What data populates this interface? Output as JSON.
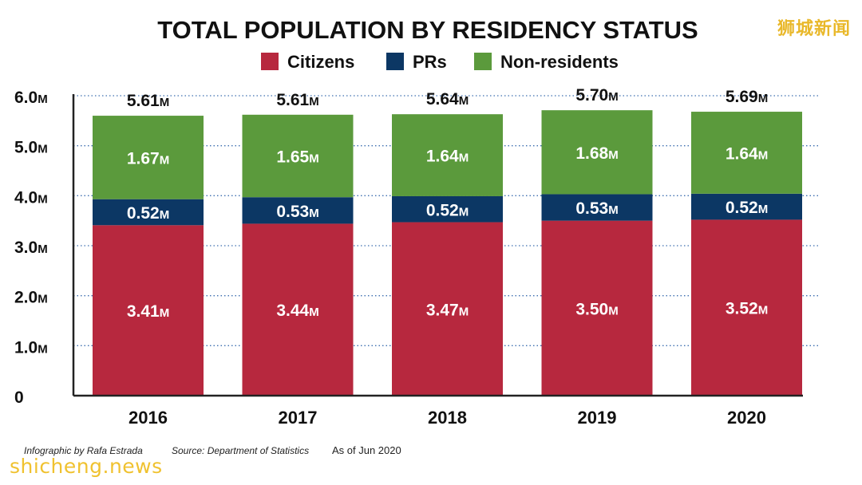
{
  "header": {
    "title": "TOTAL POPULATION BY RESIDENCY STATUS",
    "watermark_top": "狮城新闻"
  },
  "legend": [
    {
      "label": "Citizens",
      "color": "#b7283e"
    },
    {
      "label": "PRs",
      "color": "#0c3764"
    },
    {
      "label": "Non-residents",
      "color": "#5b9a3c"
    }
  ],
  "chart_data": {
    "type": "bar",
    "stacked": true,
    "title": "TOTAL POPULATION BY RESIDENCY STATUS",
    "categories": [
      "2016",
      "2017",
      "2018",
      "2019",
      "2020"
    ],
    "series": [
      {
        "name": "Citizens",
        "color": "#b7283e",
        "values": [
          3.41,
          3.44,
          3.47,
          3.5,
          3.52
        ]
      },
      {
        "name": "PRs",
        "color": "#0c3764",
        "values": [
          0.52,
          0.53,
          0.52,
          0.53,
          0.52
        ]
      },
      {
        "name": "Non-residents",
        "color": "#5b9a3c",
        "values": [
          1.67,
          1.65,
          1.64,
          1.68,
          1.64
        ]
      }
    ],
    "totals": [
      5.61,
      5.61,
      5.64,
      5.7,
      5.69
    ],
    "unit_suffix": "M",
    "y_ticks": [
      0,
      1.0,
      2.0,
      3.0,
      4.0,
      5.0,
      6.0
    ],
    "y_tick_labels": [
      "0",
      "1.0M",
      "2.0M",
      "3.0M",
      "4.0M",
      "5.0M",
      "6.0M"
    ],
    "ylim": [
      0,
      6.0
    ],
    "xlabel": "",
    "ylabel": "",
    "grid": "dotted horizontal",
    "legend_position": "top-center"
  },
  "footer": {
    "credit": "Infographic by Rafa Estrada",
    "source": "Source: Department of Statistics",
    "as_of": "As of Jun 2020",
    "watermark_bottom": "shicheng.news"
  }
}
